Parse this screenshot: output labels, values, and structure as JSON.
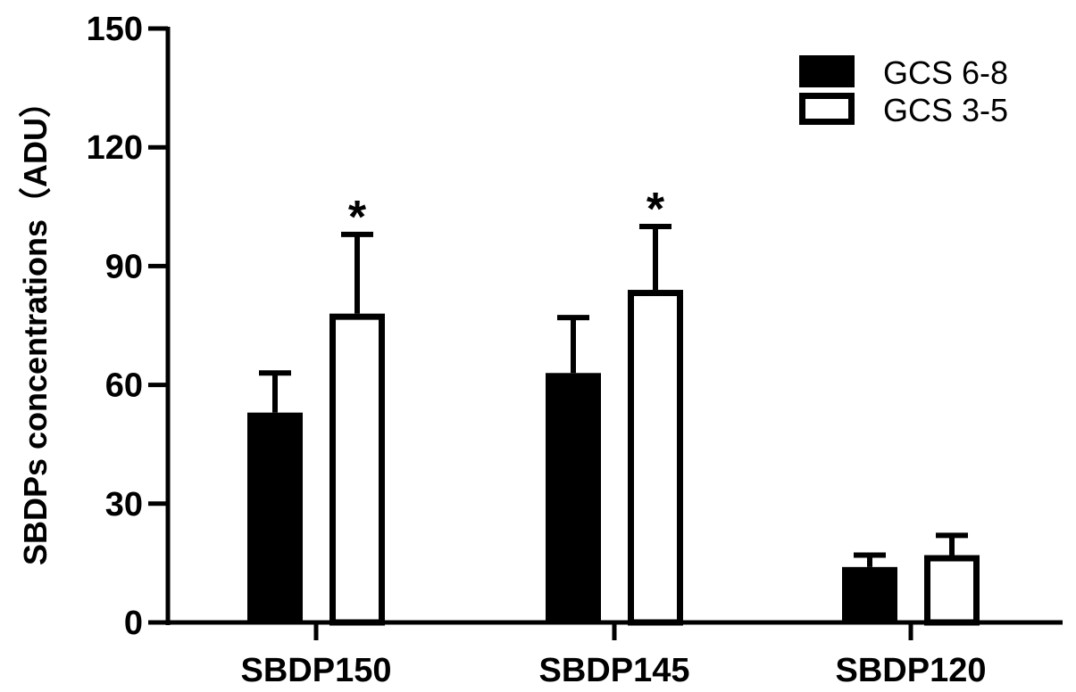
{
  "chart_data": {
    "type": "bar",
    "title": "",
    "xlabel": "",
    "ylabel": "SBDPs concentrations（ADU）",
    "ylim": [
      0,
      150
    ],
    "yticks": [
      0,
      30,
      60,
      90,
      120,
      150
    ],
    "categories": [
      "SBDP150",
      "SBDP145",
      "SBDP120"
    ],
    "series": [
      {
        "name": "GCS 6-8",
        "fill": "#000000",
        "values": [
          53,
          63,
          14
        ],
        "error": [
          10,
          14,
          3
        ]
      },
      {
        "name": "GCS 3-5",
        "fill": "#ffffff",
        "values": [
          78,
          84,
          17
        ],
        "error": [
          20,
          16,
          5
        ]
      }
    ],
    "annotations": [
      {
        "category": "SBDP150",
        "series": "GCS 3-5",
        "text": "*"
      },
      {
        "category": "SBDP145",
        "series": "GCS 3-5",
        "text": "*"
      }
    ],
    "legend": "top-right",
    "grid": false
  }
}
